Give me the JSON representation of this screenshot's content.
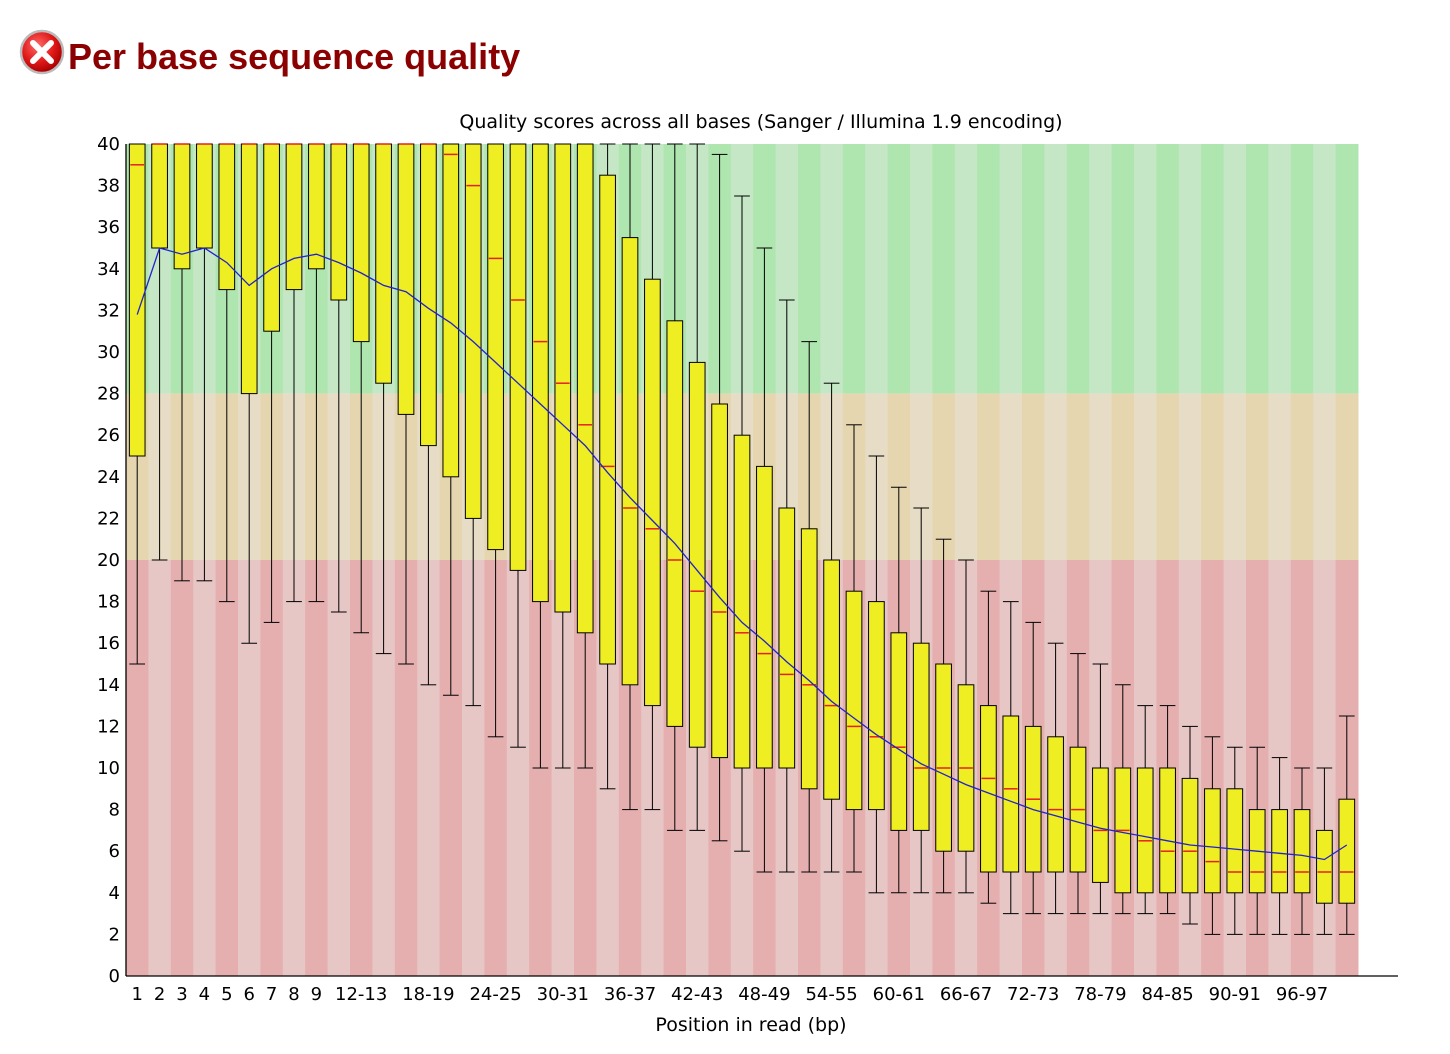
{
  "page": {
    "title": "Per base sequence quality",
    "status_icon": "fail-icon"
  },
  "colors": {
    "title": "#8b0000",
    "good_band": [
      "#afe6b0",
      "#c5e7c6"
    ],
    "warn_band": [
      "#e6d6b0",
      "#e7dcc6"
    ],
    "bad_band": [
      "#e6afaf",
      "#e7c6c6"
    ],
    "box_fill": "#eeee22",
    "median": "#e62020",
    "mean_line": "#2222cc"
  },
  "chart_data": {
    "type": "box",
    "title": "Quality scores across all bases (Sanger / Illumina 1.9 encoding)",
    "xlabel": "Position in read (bp)",
    "ylabel": "",
    "ylim": [
      0,
      40
    ],
    "yticks": [
      0,
      2,
      4,
      6,
      8,
      10,
      12,
      14,
      16,
      18,
      20,
      22,
      24,
      26,
      28,
      30,
      32,
      34,
      36,
      38,
      40
    ],
    "bands": [
      {
        "name": "good",
        "from": 28,
        "to": 40
      },
      {
        "name": "warning",
        "from": 20,
        "to": 28
      },
      {
        "name": "poor",
        "from": 0,
        "to": 20
      }
    ],
    "categories": [
      "1",
      "2",
      "3",
      "4",
      "5",
      "6",
      "7",
      "8",
      "9",
      "10-11",
      "12-13",
      "14-15",
      "16-17",
      "18-19",
      "20-21",
      "22-23",
      "24-25",
      "26-27",
      "28-29",
      "30-31",
      "32-33",
      "34-35",
      "36-37",
      "38-39",
      "40-41",
      "42-43",
      "44-45",
      "46-47",
      "48-49",
      "50-51",
      "52-53",
      "54-55",
      "56-57",
      "58-59",
      "60-61",
      "62-63",
      "64-65",
      "66-67",
      "68-69",
      "70-71",
      "72-73",
      "74-75",
      "76-77",
      "78-79",
      "80-81",
      "82-83",
      "84-85",
      "86-87",
      "88-89",
      "90-91",
      "92-93",
      "94-95",
      "96-97",
      "98-99",
      "100"
    ],
    "tick_labels": [
      "1",
      "2",
      "3",
      "4",
      "5",
      "6",
      "7",
      "8",
      "9",
      "12-13",
      "18-19",
      "24-25",
      "30-31",
      "36-37",
      "42-43",
      "48-49",
      "54-55",
      "60-61",
      "66-67",
      "72-73",
      "78-79",
      "84-85",
      "90-91",
      "96-97"
    ],
    "lower_whisker": [
      15,
      20,
      19,
      19,
      18,
      16,
      17,
      18,
      18,
      17.5,
      16.5,
      15.5,
      15,
      14,
      13.5,
      13,
      11.5,
      11,
      10,
      10,
      10,
      9,
      8,
      8,
      7,
      7,
      6.5,
      6,
      5,
      5,
      5,
      5,
      5,
      4,
      4,
      4,
      4,
      4,
      3.5,
      3,
      3,
      3,
      3,
      3,
      3,
      3,
      3,
      2.5,
      2,
      2,
      2,
      2,
      2,
      2,
      2
    ],
    "q1": [
      25,
      35,
      34,
      35,
      33,
      28,
      31,
      33,
      34,
      32.5,
      30.5,
      28.5,
      27,
      25.5,
      24,
      22,
      20.5,
      19.5,
      18,
      17.5,
      16.5,
      15,
      14,
      13,
      12,
      11,
      10.5,
      10,
      10,
      10,
      9,
      8.5,
      8,
      8,
      7,
      7,
      6,
      6,
      5,
      5,
      5,
      5,
      5,
      4.5,
      4,
      4,
      4,
      4,
      4,
      4,
      4,
      4,
      4,
      3.5,
      3.5
    ],
    "median": [
      39,
      40,
      40,
      40,
      40,
      40,
      40,
      40,
      40,
      40,
      40,
      40,
      40,
      40,
      39.5,
      38,
      34.5,
      32.5,
      30.5,
      28.5,
      26.5,
      24.5,
      22.5,
      21.5,
      20,
      18.5,
      17.5,
      16.5,
      15.5,
      14.5,
      14,
      13,
      12,
      11.5,
      11,
      10,
      10,
      10,
      9.5,
      9,
      8.5,
      8,
      8,
      7,
      7,
      6.5,
      6,
      6,
      5.5,
      5,
      5,
      5,
      5,
      5,
      5
    ],
    "q3": [
      40,
      40,
      40,
      40,
      40,
      40,
      40,
      40,
      40,
      40,
      40,
      40,
      40,
      40,
      40,
      40,
      40,
      40,
      40,
      40,
      40,
      38.5,
      35.5,
      33.5,
      31.5,
      29.5,
      27.5,
      26,
      24.5,
      22.5,
      21.5,
      20,
      18.5,
      18,
      16.5,
      16,
      15,
      14,
      13,
      12.5,
      12,
      11.5,
      11,
      10,
      10,
      10,
      10,
      9.5,
      9,
      9,
      8,
      8,
      8,
      7,
      8.5
    ],
    "upper_whisker": [
      40,
      40,
      40,
      40,
      40,
      40,
      40,
      40,
      40,
      40,
      40,
      40,
      40,
      40,
      40,
      40,
      40,
      40,
      40,
      40,
      40,
      40,
      40,
      40,
      40,
      40,
      39.5,
      37.5,
      35,
      32.5,
      30.5,
      28.5,
      26.5,
      25,
      23.5,
      22.5,
      21,
      20,
      18.5,
      18,
      17,
      16,
      15.5,
      15,
      14,
      13,
      13,
      12,
      11.5,
      11,
      11,
      10.5,
      10,
      10,
      12.5
    ],
    "mean": [
      31.8,
      35,
      34.7,
      35,
      34.3,
      33.2,
      34,
      34.5,
      34.7,
      34.3,
      33.8,
      33.2,
      32.9,
      32.1,
      31.4,
      30.5,
      29.5,
      28.5,
      27.5,
      26.5,
      25.5,
      24.2,
      23,
      21.9,
      20.8,
      19.5,
      18.2,
      17,
      16.1,
      15.1,
      14.2,
      13.2,
      12.4,
      11.6,
      10.9,
      10.2,
      9.7,
      9.2,
      8.8,
      8.4,
      8,
      7.7,
      7.4,
      7.1,
      6.9,
      6.7,
      6.5,
      6.3,
      6.2,
      6.1,
      6,
      5.9,
      5.8,
      5.6,
      6.3
    ]
  }
}
